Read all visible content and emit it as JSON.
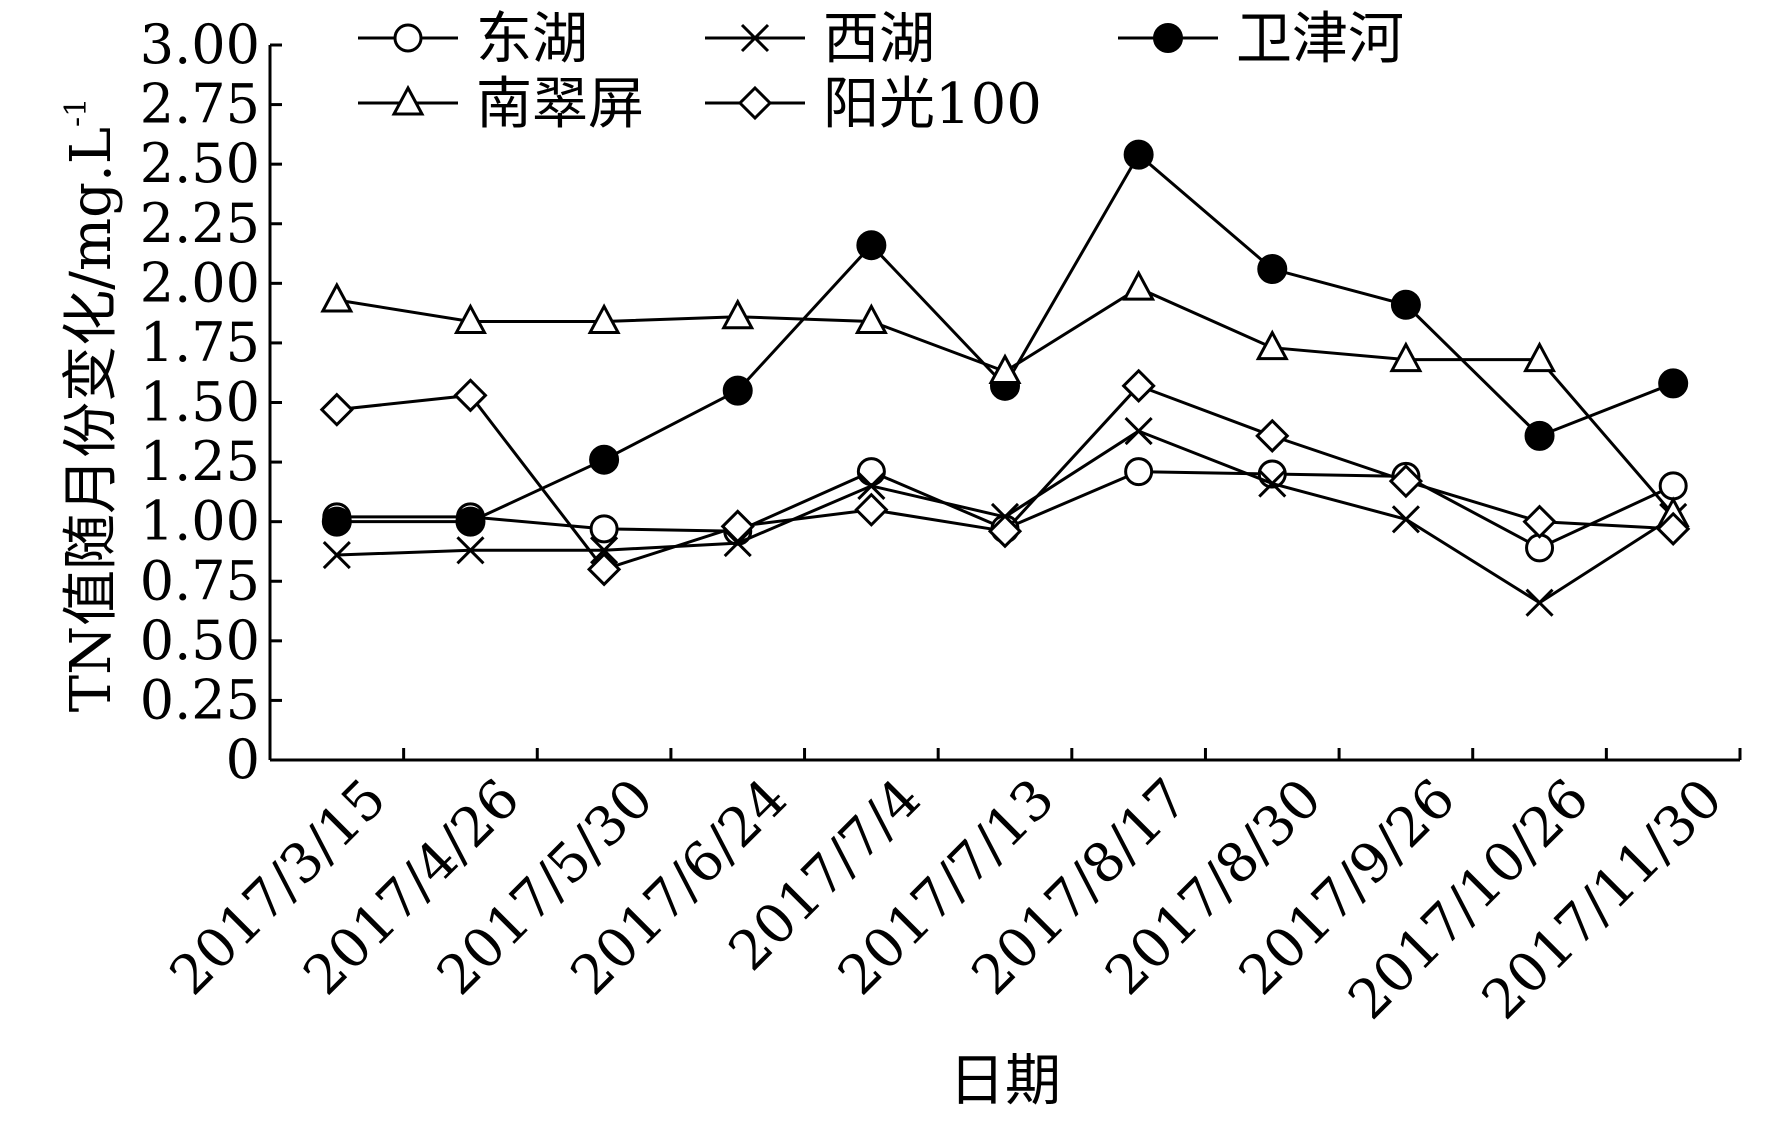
{
  "chart_data": {
    "type": "line",
    "xlabel": "日期",
    "ylabel": "TN值随月份变化/mg.L",
    "ylabel_sup": "-1",
    "ylim": [
      0,
      3
    ],
    "yticks": [
      "0",
      "0.25",
      "0.50",
      "0.75",
      "1.00",
      "1.25",
      "1.50",
      "1.75",
      "2.00",
      "2.25",
      "2.50",
      "2.75",
      "3.00"
    ],
    "categories": [
      "2017/3/15",
      "2017/4/26",
      "2017/5/30",
      "2017/6/24",
      "2017/7/4",
      "2017/7/13",
      "2017/8/17",
      "2017/8/30",
      "2017/9/26",
      "2017/10/26",
      "2017/11/30"
    ],
    "legend_position": "top",
    "grid": false,
    "series": [
      {
        "name": "东湖",
        "marker": "open-circle",
        "values": [
          1.02,
          1.02,
          0.97,
          0.96,
          1.21,
          0.97,
          1.21,
          1.2,
          1.19,
          0.89,
          1.15
        ]
      },
      {
        "name": "西湖",
        "marker": "cross",
        "values": [
          0.86,
          0.88,
          0.88,
          0.91,
          1.15,
          1.02,
          1.38,
          1.16,
          1.01,
          0.66,
          1.02
        ]
      },
      {
        "name": "卫津河",
        "marker": "filled-circle",
        "values": [
          1.0,
          1.0,
          1.26,
          1.55,
          2.16,
          1.57,
          2.54,
          2.06,
          1.91,
          1.36,
          1.58
        ]
      },
      {
        "name": "南翠屏",
        "marker": "open-triangle",
        "values": [
          1.93,
          1.84,
          1.84,
          1.86,
          1.84,
          1.63,
          1.98,
          1.73,
          1.68,
          1.68,
          1.03
        ]
      },
      {
        "name": "阳光100",
        "marker": "open-diamond",
        "values": [
          1.47,
          1.53,
          0.8,
          0.98,
          1.05,
          0.96,
          1.57,
          1.36,
          1.17,
          1.0,
          0.97
        ]
      }
    ]
  }
}
